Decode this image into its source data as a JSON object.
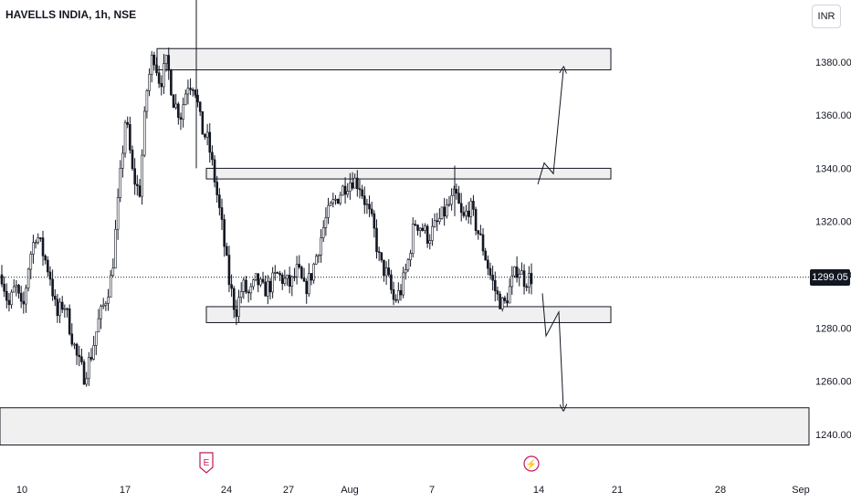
{
  "header": {
    "symbol_title": "HAVELLS INDIA, 1h, NSE",
    "currency": "INR"
  },
  "last_price_label": "1299.05",
  "colors": {
    "candle": "#131722",
    "zone_fill": "#f0f0f1",
    "zone_border": "#131722",
    "last_price_line": "#131722",
    "earnings_badge": "#c2185b"
  },
  "events": [
    {
      "name": "earnings",
      "label": "E",
      "date_label": "Jul 22"
    },
    {
      "name": "dividend",
      "label": "⚡",
      "date_label": "Aug 13"
    }
  ],
  "chart_data": {
    "type": "candlestick",
    "title": "HAVELLS INDIA, 1h, NSE",
    "ylabel": "INR",
    "ylim": [
      1232,
      1412
    ],
    "yticks": [
      "1240.00",
      "1260.00",
      "1280.00",
      "1300.00",
      "1320.00",
      "1340.00",
      "1360.00",
      "1380.00"
    ],
    "ytick_values": [
      1240,
      1260,
      1280,
      1300,
      1320,
      1340,
      1360,
      1380
    ],
    "xticks": [
      "10",
      "17",
      "24",
      "27",
      "Aug",
      "7",
      "14",
      "21",
      "28",
      "Sep"
    ],
    "last_price": 1299.05,
    "grid": false,
    "zones": [
      {
        "name": "resistance-top",
        "from": "Jul 19",
        "to": "Aug 21",
        "low": 1377,
        "high": 1385
      },
      {
        "name": "resistance-mid",
        "from": "Jul 22",
        "to": "Aug 21",
        "low": 1336,
        "high": 1340
      },
      {
        "name": "support",
        "from": "Jul 22",
        "to": "Aug 21",
        "low": 1282,
        "high": 1288
      },
      {
        "name": "target-support",
        "from": "Jul 5",
        "to": "Sep 4",
        "low": 1236,
        "high": 1250
      }
    ],
    "arrows": [
      {
        "name": "bullish-path",
        "points": [
          [
            1334,
            0
          ],
          [
            1342,
            0.3
          ],
          [
            1338,
            0.55
          ],
          [
            1377,
            1
          ]
        ]
      },
      {
        "name": "bearish-path",
        "points": [
          [
            1293,
            0
          ],
          [
            1277,
            0.3
          ],
          [
            1286,
            0.55
          ],
          [
            1250,
            1
          ]
        ]
      }
    ],
    "candle_trend": [
      1300,
      1288,
      1296,
      1285,
      1306,
      1316,
      1308,
      1300,
      1284,
      1290,
      1279,
      1268,
      1262,
      1270,
      1282,
      1290,
      1300,
      1330,
      1360,
      1338,
      1330,
      1368,
      1384,
      1372,
      1380,
      1365,
      1360,
      1372,
      1372,
      1355,
      1350,
      1335,
      1318,
      1298,
      1286,
      1296,
      1292,
      1298,
      1294,
      1296,
      1300,
      1298,
      1296,
      1302,
      1294,
      1300,
      1310,
      1320,
      1326,
      1330,
      1334,
      1336,
      1334,
      1326,
      1318,
      1304,
      1300,
      1290,
      1294,
      1304,
      1320,
      1318,
      1314,
      1318,
      1322,
      1326,
      1330,
      1320,
      1326,
      1318,
      1310,
      1300,
      1292,
      1288,
      1296,
      1303,
      1298,
      1299
    ]
  }
}
